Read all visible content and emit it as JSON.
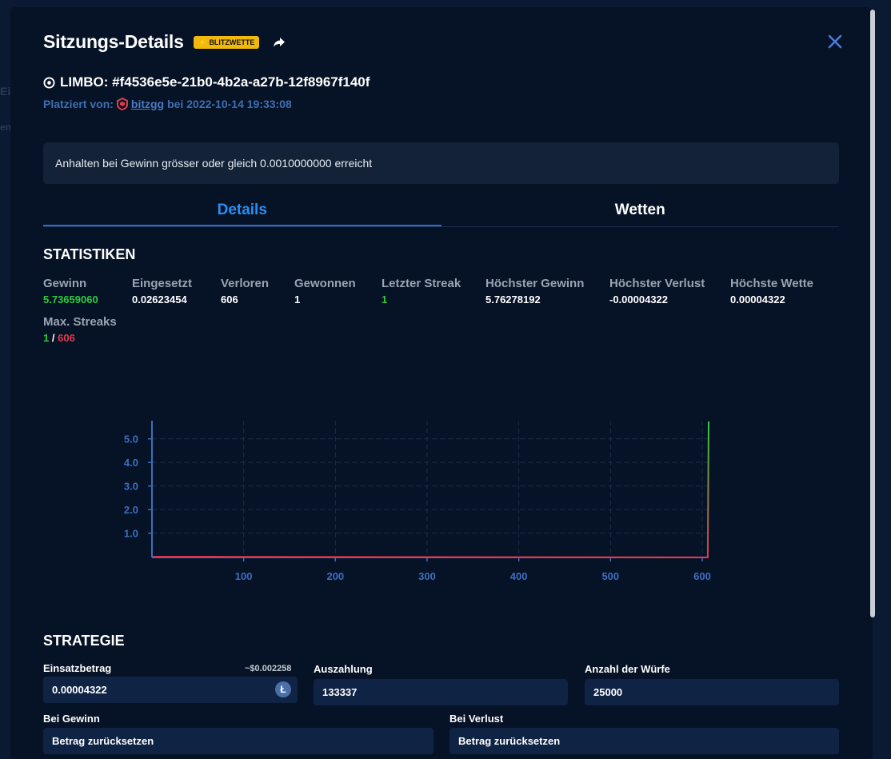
{
  "modal": {
    "title": "Sitzungs-Details",
    "badge": "BLITZWETTE",
    "game_line": "LIMBO: #f4536e5e-21b0-4b2a-a27b-12f8967f140f",
    "placed_prefix": "Platziert von:",
    "user": "bitzgg",
    "placed_suffix": "bei 2022-10-14 19:33:08",
    "notice": "Anhalten bei Gewinn grösser oder gleich 0.0010000000 erreicht"
  },
  "tabs": [
    {
      "label": "Details",
      "active": true
    },
    {
      "label": "Wetten",
      "active": false
    }
  ],
  "stats": {
    "title": "STATISTIKEN",
    "items": [
      {
        "label": "Gewinn",
        "value": "5.73659060"
      },
      {
        "label": "Eingesetzt",
        "value": "0.02623454"
      },
      {
        "label": "Verloren",
        "value": "606"
      },
      {
        "label": "Gewonnen",
        "value": "1"
      },
      {
        "label": "Letzter Streak",
        "value": "1"
      },
      {
        "label": "Höchster Gewinn",
        "value": "5.76278192"
      },
      {
        "label": "Höchster Verlust",
        "value": "-0.00004322"
      },
      {
        "label": "Höchste Wette",
        "value": "0.00004322"
      }
    ],
    "max_streaks_label": "Max. Streaks",
    "max_win": "1",
    "separator": "/",
    "max_loss": "606"
  },
  "chart_data": {
    "type": "line",
    "title": "",
    "xlabel": "",
    "ylabel": "",
    "x_ticks": [
      100,
      200,
      300,
      400,
      500,
      600
    ],
    "y_ticks": [
      "1.0",
      "2.0",
      "3.0",
      "4.0",
      "5.0"
    ],
    "xlim": [
      0,
      607
    ],
    "ylim": [
      -0.03,
      5.77
    ],
    "grid": true,
    "series": [
      {
        "x": [
          1,
          100,
          200,
          300,
          400,
          500,
          600,
          606,
          607
        ],
        "y": [
          0.0,
          -0.004,
          -0.009,
          -0.013,
          -0.017,
          -0.022,
          -0.026,
          -0.026,
          5.74
        ]
      }
    ],
    "colors": {
      "axis": "#3d6fc0",
      "grid": "#1d2c45",
      "gain": "#2fcb40",
      "loss": "#e23a4c"
    }
  },
  "strategy": {
    "title": "STRATEGIE",
    "bet_label": "Einsatzbetrag",
    "bet_usd": "~$0.002258",
    "bet_value": "0.00004322",
    "coin_icon": "litecoin-icon",
    "payout_label": "Auszahlung",
    "payout_value": "133337",
    "rolls_label": "Anzahl der Würfe",
    "rolls_value": "25000",
    "on_win_label": "Bei Gewinn",
    "on_win_value": "Betrag zurücksetzen",
    "on_loss_label": "Bei Verlust",
    "on_loss_value": "Betrag zurücksetzen"
  },
  "background": {
    "left_a": "Ei",
    "left_b": "en"
  },
  "colors": {
    "accent": "#2b8ef0",
    "badge": "#f0b90b",
    "panel": "#061226"
  }
}
